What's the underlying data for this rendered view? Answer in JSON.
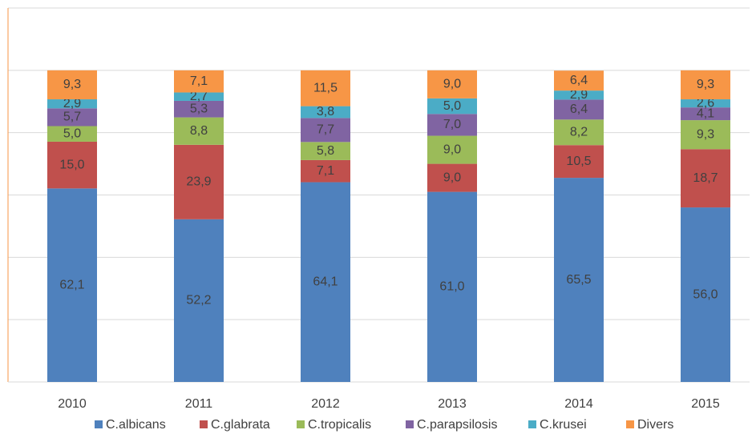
{
  "chart_data": {
    "type": "stacked_bar",
    "categories": [
      "2010",
      "2011",
      "2012",
      "2013",
      "2014",
      "2015"
    ],
    "series": [
      {
        "name": "C.albicans",
        "color": "#4f81bd",
        "values": [
          62.1,
          52.2,
          64.1,
          61.0,
          65.5,
          56.0
        ],
        "value_labels": [
          "62,1",
          "52,2",
          "64,1",
          "61,0",
          "65,5",
          "56,0"
        ]
      },
      {
        "name": "C.glabrata",
        "color": "#c0504d",
        "values": [
          15.0,
          23.9,
          7.1,
          9.0,
          10.5,
          18.7
        ],
        "value_labels": [
          "15,0",
          "23,9",
          "7,1",
          "9,0",
          "10,5",
          "18,7"
        ]
      },
      {
        "name": "C.tropicalis",
        "color": "#9bbb59",
        "values": [
          5.0,
          8.8,
          5.8,
          9.0,
          8.2,
          9.3
        ],
        "value_labels": [
          "5,0",
          "8,8",
          "5,8",
          "9,0",
          "8,2",
          "9,3"
        ]
      },
      {
        "name": "C.parapsilosis",
        "color": "#8064a2",
        "values": [
          5.7,
          5.3,
          7.7,
          7.0,
          6.4,
          4.1
        ],
        "value_labels": [
          "5,7",
          "5,3",
          "7,7",
          "7,0",
          "6,4",
          "4,1"
        ]
      },
      {
        "name": "C.krusei",
        "color": "#4bacc6",
        "values": [
          2.9,
          2.7,
          3.8,
          5.0,
          2.9,
          2.6
        ],
        "value_labels": [
          "2,9",
          "2,7",
          "3,8",
          "5,0",
          "2,9",
          "2,6"
        ]
      },
      {
        "name": "Divers",
        "color": "#f79646",
        "values": [
          9.3,
          7.1,
          11.5,
          9.0,
          6.4,
          9.3
        ],
        "value_labels": [
          "9,3",
          "7,1",
          "11,5",
          "9,0",
          "6,4",
          "9,3"
        ]
      }
    ],
    "ylim": [
      0,
      120
    ],
    "yticks": [
      0,
      20,
      40,
      60,
      80,
      100,
      120
    ],
    "grid": true,
    "legend": "bottom"
  }
}
